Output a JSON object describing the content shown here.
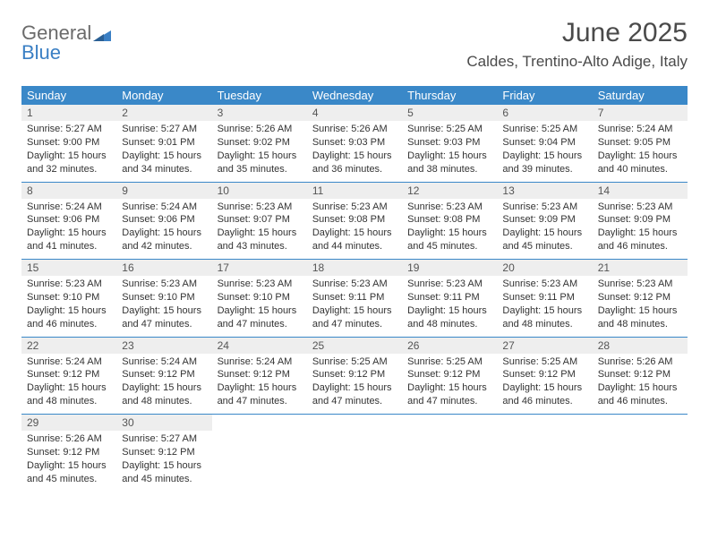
{
  "logo": {
    "word1": "General",
    "word2": "Blue"
  },
  "header": {
    "month_year": "June 2025",
    "location": "Caldes, Trentino-Alto Adige, Italy"
  },
  "colors": {
    "header_bar": "#3a88c8",
    "header_text": "#ffffff",
    "num_row_bg": "#eeeeee",
    "num_text": "#555555",
    "cell_text": "#333333",
    "logo_gray": "#6b6b6b",
    "logo_blue": "#3a7fc4",
    "title_text": "#4a4a4a"
  },
  "day_headers": [
    "Sunday",
    "Monday",
    "Tuesday",
    "Wednesday",
    "Thursday",
    "Friday",
    "Saturday"
  ],
  "weeks": [
    [
      {
        "n": "1",
        "sr": "5:27 AM",
        "ss": "9:00 PM",
        "dl": "15 hours and 32 minutes."
      },
      {
        "n": "2",
        "sr": "5:27 AM",
        "ss": "9:01 PM",
        "dl": "15 hours and 34 minutes."
      },
      {
        "n": "3",
        "sr": "5:26 AM",
        "ss": "9:02 PM",
        "dl": "15 hours and 35 minutes."
      },
      {
        "n": "4",
        "sr": "5:26 AM",
        "ss": "9:03 PM",
        "dl": "15 hours and 36 minutes."
      },
      {
        "n": "5",
        "sr": "5:25 AM",
        "ss": "9:03 PM",
        "dl": "15 hours and 38 minutes."
      },
      {
        "n": "6",
        "sr": "5:25 AM",
        "ss": "9:04 PM",
        "dl": "15 hours and 39 minutes."
      },
      {
        "n": "7",
        "sr": "5:24 AM",
        "ss": "9:05 PM",
        "dl": "15 hours and 40 minutes."
      }
    ],
    [
      {
        "n": "8",
        "sr": "5:24 AM",
        "ss": "9:06 PM",
        "dl": "15 hours and 41 minutes."
      },
      {
        "n": "9",
        "sr": "5:24 AM",
        "ss": "9:06 PM",
        "dl": "15 hours and 42 minutes."
      },
      {
        "n": "10",
        "sr": "5:23 AM",
        "ss": "9:07 PM",
        "dl": "15 hours and 43 minutes."
      },
      {
        "n": "11",
        "sr": "5:23 AM",
        "ss": "9:08 PM",
        "dl": "15 hours and 44 minutes."
      },
      {
        "n": "12",
        "sr": "5:23 AM",
        "ss": "9:08 PM",
        "dl": "15 hours and 45 minutes."
      },
      {
        "n": "13",
        "sr": "5:23 AM",
        "ss": "9:09 PM",
        "dl": "15 hours and 45 minutes."
      },
      {
        "n": "14",
        "sr": "5:23 AM",
        "ss": "9:09 PM",
        "dl": "15 hours and 46 minutes."
      }
    ],
    [
      {
        "n": "15",
        "sr": "5:23 AM",
        "ss": "9:10 PM",
        "dl": "15 hours and 46 minutes."
      },
      {
        "n": "16",
        "sr": "5:23 AM",
        "ss": "9:10 PM",
        "dl": "15 hours and 47 minutes."
      },
      {
        "n": "17",
        "sr": "5:23 AM",
        "ss": "9:10 PM",
        "dl": "15 hours and 47 minutes."
      },
      {
        "n": "18",
        "sr": "5:23 AM",
        "ss": "9:11 PM",
        "dl": "15 hours and 47 minutes."
      },
      {
        "n": "19",
        "sr": "5:23 AM",
        "ss": "9:11 PM",
        "dl": "15 hours and 48 minutes."
      },
      {
        "n": "20",
        "sr": "5:23 AM",
        "ss": "9:11 PM",
        "dl": "15 hours and 48 minutes."
      },
      {
        "n": "21",
        "sr": "5:23 AM",
        "ss": "9:12 PM",
        "dl": "15 hours and 48 minutes."
      }
    ],
    [
      {
        "n": "22",
        "sr": "5:24 AM",
        "ss": "9:12 PM",
        "dl": "15 hours and 48 minutes."
      },
      {
        "n": "23",
        "sr": "5:24 AM",
        "ss": "9:12 PM",
        "dl": "15 hours and 48 minutes."
      },
      {
        "n": "24",
        "sr": "5:24 AM",
        "ss": "9:12 PM",
        "dl": "15 hours and 47 minutes."
      },
      {
        "n": "25",
        "sr": "5:25 AM",
        "ss": "9:12 PM",
        "dl": "15 hours and 47 minutes."
      },
      {
        "n": "26",
        "sr": "5:25 AM",
        "ss": "9:12 PM",
        "dl": "15 hours and 47 minutes."
      },
      {
        "n": "27",
        "sr": "5:25 AM",
        "ss": "9:12 PM",
        "dl": "15 hours and 46 minutes."
      },
      {
        "n": "28",
        "sr": "5:26 AM",
        "ss": "9:12 PM",
        "dl": "15 hours and 46 minutes."
      }
    ],
    [
      {
        "n": "29",
        "sr": "5:26 AM",
        "ss": "9:12 PM",
        "dl": "15 hours and 45 minutes."
      },
      {
        "n": "30",
        "sr": "5:27 AM",
        "ss": "9:12 PM",
        "dl": "15 hours and 45 minutes."
      },
      null,
      null,
      null,
      null,
      null
    ]
  ],
  "labels": {
    "sunrise": "Sunrise:",
    "sunset": "Sunset:",
    "daylight": "Daylight:"
  }
}
